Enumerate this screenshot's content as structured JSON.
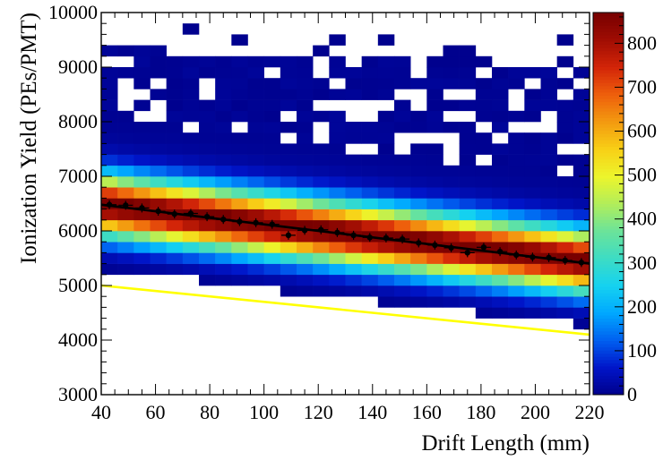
{
  "chart_data": {
    "type": "heatmap",
    "title": "",
    "xlabel": "Drift Length (mm)",
    "ylabel": "Ionization Yield (PEs/PMT)",
    "xlim": [
      40,
      220
    ],
    "ylim": [
      3000,
      10000
    ],
    "x_ticks": [
      40,
      60,
      80,
      100,
      120,
      140,
      160,
      180,
      200,
      220
    ],
    "y_ticks": [
      3000,
      4000,
      5000,
      6000,
      7000,
      8000,
      9000,
      10000
    ],
    "x_tick_labels": [
      "40",
      "60",
      "80",
      "100",
      "120",
      "140",
      "160",
      "180",
      "200",
      "220"
    ],
    "y_tick_labels": [
      "3000",
      "4000",
      "5000",
      "6000",
      "7000",
      "8000",
      "9000",
      "10000"
    ],
    "colorbar": {
      "min": 0,
      "max": 870,
      "ticks": [
        0,
        100,
        200,
        300,
        400,
        500,
        600,
        700,
        800
      ],
      "tick_labels": [
        "0",
        "100",
        "200",
        "300",
        "400",
        "500",
        "600",
        "700",
        "800"
      ],
      "palette": [
        "#00008b",
        "#0015c9",
        "#0060f0",
        "#00a8ff",
        "#15d2f0",
        "#3ddcc4",
        "#6be39a",
        "#b2ee5a",
        "#ecf52c",
        "#f8d016",
        "#f39a10",
        "#ee5f0c",
        "#d32508",
        "#a00d03",
        "#780000"
      ]
    },
    "grid": false,
    "legend": "none",
    "bins": {
      "x_start": 40,
      "x_width": 6,
      "count_x": 30,
      "y_start": 3000,
      "y_width": 200,
      "count_y": 35
    },
    "band": {
      "peak_at_40": 6460,
      "slope_per_mm": -5.8,
      "core_sigma": 380,
      "outer_sigma": 900,
      "max_count": 860
    },
    "series": [
      {
        "name": "",
        "type": "line",
        "color": "#000000",
        "x": [
          40,
          220
        ],
        "y": [
          6480,
          5400
        ]
      },
      {
        "name": "",
        "type": "line",
        "color": "#ffff00",
        "x": [
          40,
          220
        ],
        "y": [
          5000,
          4100
        ]
      },
      {
        "name": "",
        "type": "scatter",
        "color": "#000000",
        "x": [
          43,
          49,
          55,
          61,
          67,
          73,
          79,
          85,
          91,
          97,
          103,
          109,
          115,
          121,
          127,
          133,
          139,
          145,
          151,
          157,
          163,
          169,
          175,
          181,
          187,
          193,
          199,
          205,
          211,
          217
        ],
        "y": [
          6480,
          6470,
          6420,
          6360,
          6310,
          6320,
          6260,
          6210,
          6170,
          6150,
          6120,
          5920,
          6010,
          6020,
          5970,
          5920,
          5880,
          5870,
          5850,
          5780,
          5740,
          5690,
          5600,
          5700,
          5620,
          5560,
          5520,
          5510,
          5460,
          5420
        ]
      }
    ]
  }
}
